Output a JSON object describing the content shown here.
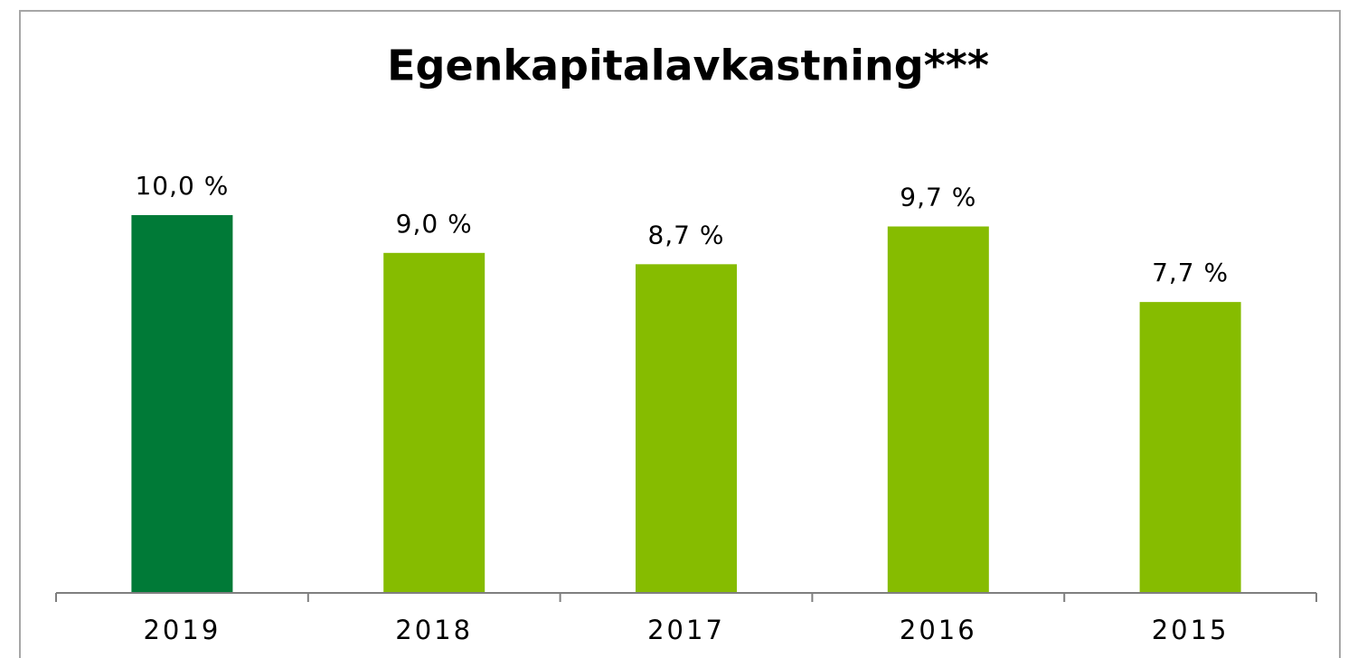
{
  "chart_data": {
    "type": "bar",
    "title": "Egenkapitalavkastning***",
    "categories": [
      "2019",
      "2018",
      "2017",
      "2016",
      "2015"
    ],
    "values": [
      10.0,
      9.0,
      8.7,
      9.7,
      7.7
    ],
    "value_labels": [
      "10,0 %",
      "9,0 %",
      "8,7 %",
      "9,7 %",
      "7,7 %"
    ],
    "colors": [
      "#007a37",
      "#86bc00",
      "#86bc00",
      "#86bc00",
      "#86bc00"
    ]
  }
}
